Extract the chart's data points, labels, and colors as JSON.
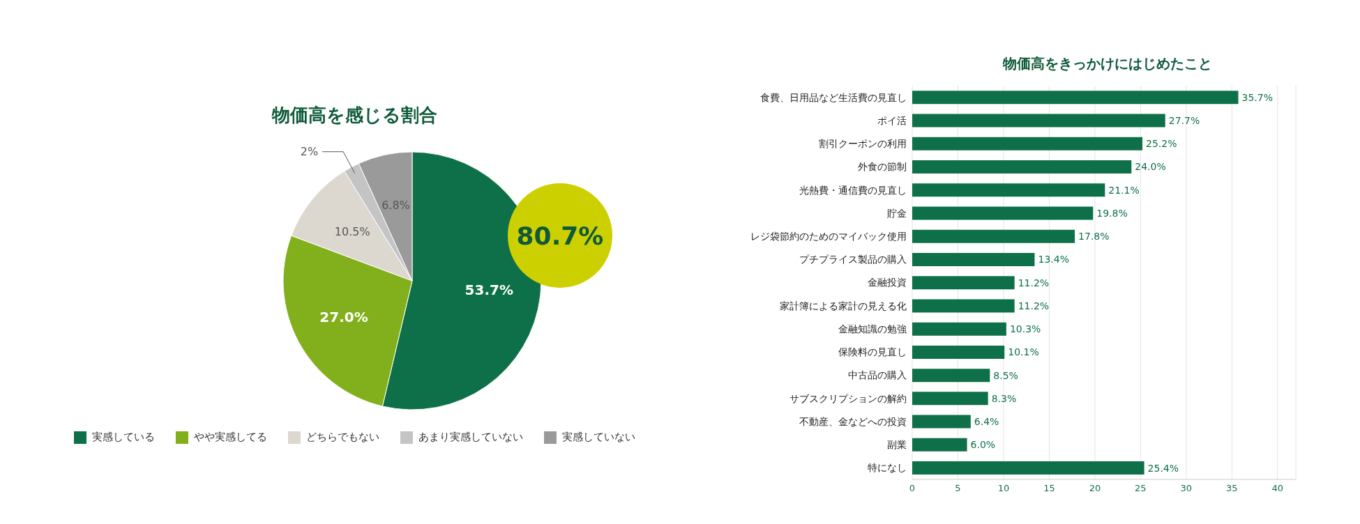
{
  "chart_data": [
    {
      "type": "pie",
      "title": "物価高を感じる割合",
      "categories": [
        "実感している",
        "やや実感してる",
        "どちらでもない",
        "あまり実感していない",
        "実感していない"
      ],
      "values": [
        53.7,
        27.0,
        10.5,
        2,
        6.8
      ],
      "value_labels": [
        "53.7%",
        "27.0%",
        "10.5%",
        "2%",
        "6.8%"
      ],
      "colors": [
        "#0e7048",
        "#82b01c",
        "#dcd8d0",
        "#c4c4c4",
        "#9a9a9a"
      ],
      "annotations": [
        "80.7%"
      ],
      "legend": "bottom"
    },
    {
      "type": "bar",
      "orientation": "horizontal",
      "title": "物価高をきっかけにはじめたこと",
      "categories": [
        "食費、日用品など生活費の見直し",
        "ポイ活",
        "割引クーポンの利用",
        "外食の節制",
        "光熱費・通信費の見直し",
        "貯金",
        "レジ袋節約のためのマイバック使用",
        "プチプライス製品の購入",
        "金融投資",
        "家計簿による家計の見える化",
        "金融知識の勉強",
        "保険料の見直し",
        "中古品の購入",
        "サブスクリプションの解約",
        "不動産、金などへの投資",
        "副業",
        "特になし"
      ],
      "values": [
        35.7,
        27.7,
        25.2,
        24.0,
        21.1,
        19.8,
        17.8,
        13.4,
        11.2,
        11.2,
        10.3,
        10.1,
        8.5,
        8.3,
        6.4,
        6.0,
        25.4
      ],
      "value_labels": [
        "35.7%",
        "27.7%",
        "25.2%",
        "24.0%",
        "21.1%",
        "19.8%",
        "17.8%",
        "13.4%",
        "11.2%",
        "11.2%",
        "10.3%",
        "10.1%",
        "8.5%",
        "8.3%",
        "6.4%",
        "6.0%",
        "25.4%"
      ],
      "color": "#0e7048",
      "xlim": [
        0,
        42
      ],
      "xticks": [
        0,
        5,
        10,
        15,
        20,
        25,
        30,
        35,
        40
      ],
      "grid": "x"
    }
  ]
}
